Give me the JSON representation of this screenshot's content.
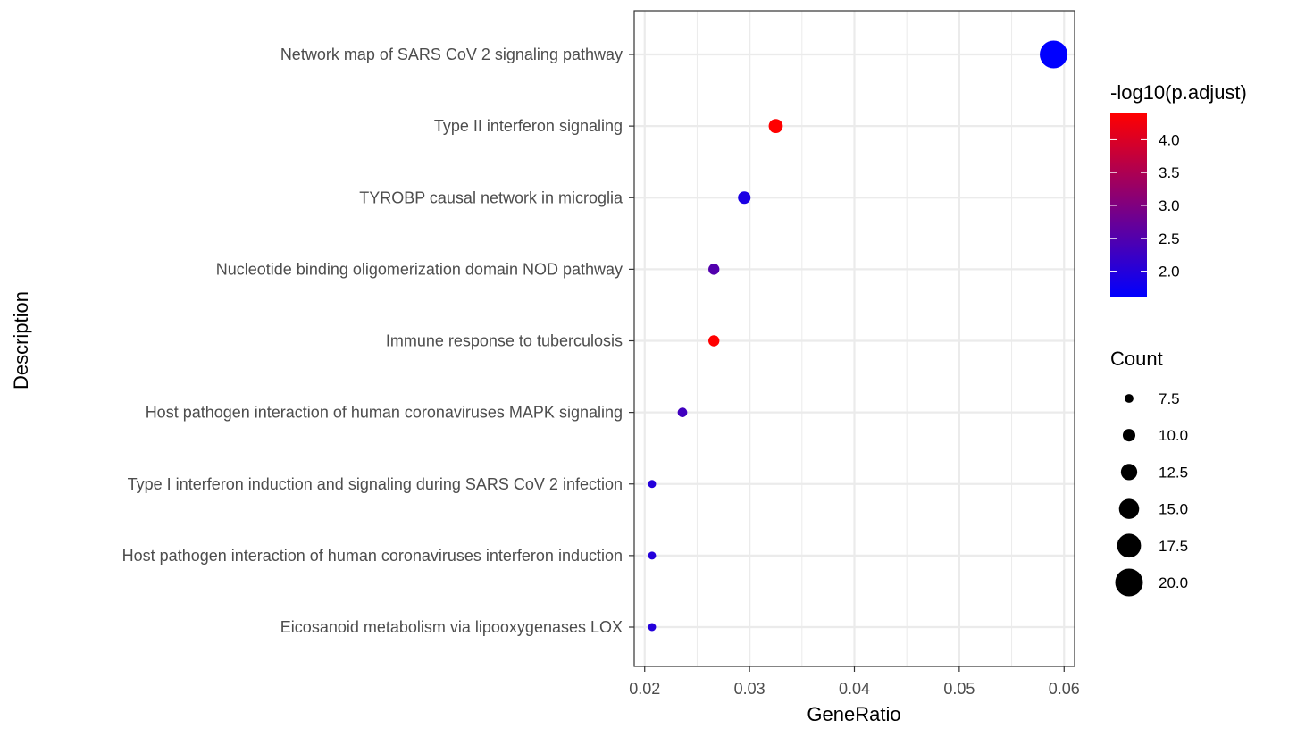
{
  "chart_data": {
    "type": "scatter",
    "xlabel": "GeneRatio",
    "ylabel": "Description",
    "xlim": [
      0.019,
      0.061
    ],
    "x_ticks": [
      "0.02",
      "0.03",
      "0.04",
      "0.05",
      "0.06"
    ],
    "x_tick_values": [
      0.02,
      0.03,
      0.04,
      0.05,
      0.06
    ],
    "grid": true,
    "categories": [
      "Network map of SARS CoV 2 signaling pathway",
      "Type II interferon signaling",
      "TYROBP causal network in microglia",
      "Nucleotide binding oligomerization domain NOD pathway",
      "Immune response to tuberculosis",
      "Host pathogen interaction of human coronaviruses MAPK signaling",
      "Type I interferon induction and signaling during SARS CoV 2 infection",
      "Host pathogen interaction of human coronaviruses interferon induction",
      "Eicosanoid metabolism via lipooxygenases LOX"
    ],
    "points": [
      {
        "description": "Network map of SARS CoV 2 signaling pathway",
        "gene_ratio": 0.059,
        "count": 20,
        "neg_log10_padj": 1.6
      },
      {
        "description": "Type II interferon signaling",
        "gene_ratio": 0.0325,
        "count": 11,
        "neg_log10_padj": 4.4
      },
      {
        "description": "TYROBP causal network in microglia",
        "gene_ratio": 0.0295,
        "count": 10,
        "neg_log10_padj": 1.9
      },
      {
        "description": "Nucleotide binding oligomerization domain NOD pathway",
        "gene_ratio": 0.0266,
        "count": 9,
        "neg_log10_padj": 2.5
      },
      {
        "description": "Immune response to tuberculosis",
        "gene_ratio": 0.0266,
        "count": 9,
        "neg_log10_padj": 4.4
      },
      {
        "description": "Host pathogen interaction of human coronaviruses MAPK signaling",
        "gene_ratio": 0.0236,
        "count": 8,
        "neg_log10_padj": 2.3
      },
      {
        "description": "Type I interferon induction and signaling during SARS CoV 2 infection",
        "gene_ratio": 0.0207,
        "count": 7,
        "neg_log10_padj": 2.0
      },
      {
        "description": "Host pathogen interaction of human coronaviruses interferon induction",
        "gene_ratio": 0.0207,
        "count": 7,
        "neg_log10_padj": 2.0
      },
      {
        "description": "Eicosanoid metabolism via lipooxygenases LOX",
        "gene_ratio": 0.0207,
        "count": 7,
        "neg_log10_padj": 2.0
      }
    ],
    "color_legend": {
      "title": "-log10(p.adjust)",
      "min": 1.6,
      "max": 4.4,
      "low_color": "#0000FF",
      "high_color": "#FF0000",
      "ticks": [
        "2.0",
        "2.5",
        "3.0",
        "3.5",
        "4.0"
      ],
      "tick_values": [
        2.0,
        2.5,
        3.0,
        3.5,
        4.0
      ]
    },
    "size_legend": {
      "title": "Count",
      "labels": [
        "7.5",
        "10.0",
        "12.5",
        "15.0",
        "17.5",
        "20.0"
      ],
      "values": [
        7.5,
        10.0,
        12.5,
        15.0,
        17.5,
        20.0
      ],
      "count_range": [
        7,
        20
      ]
    }
  }
}
